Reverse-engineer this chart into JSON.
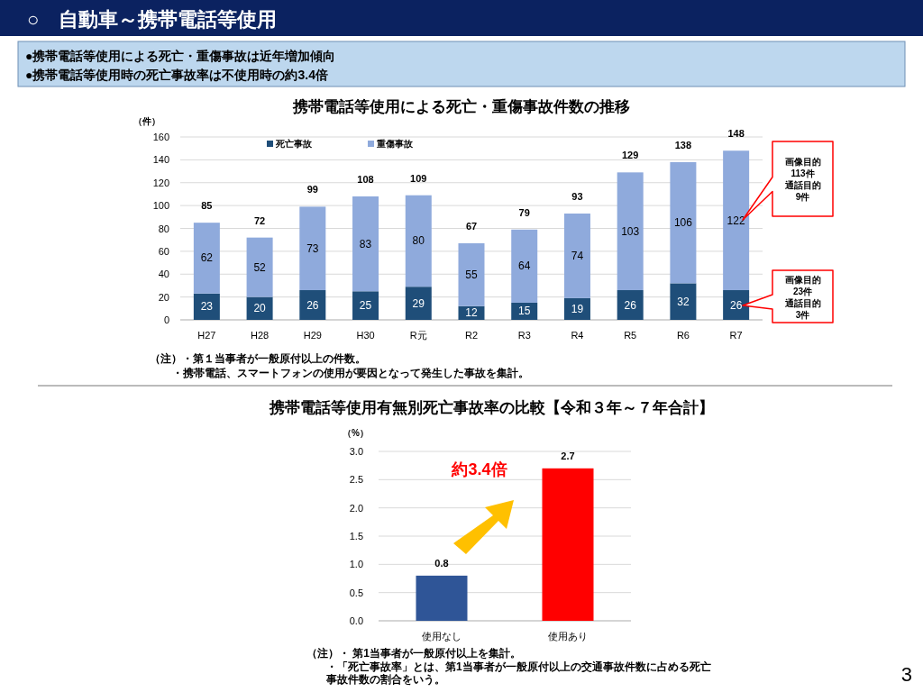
{
  "chart_data": [
    {
      "type": "bar",
      "title": "携帯電話等使用による死亡・重傷事故件数の推移",
      "ylabel": "（件）",
      "categories": [
        "H27",
        "H28",
        "H29",
        "H30",
        "R元",
        "R2",
        "R3",
        "R4",
        "R5",
        "R6",
        "R7"
      ],
      "stacked": true,
      "series": [
        {
          "name": "死亡事故",
          "color": "#1f4e79",
          "values": [
            23,
            20,
            26,
            25,
            29,
            12,
            15,
            19,
            26,
            32,
            26
          ]
        },
        {
          "name": "重傷事故",
          "color": "#8faadc",
          "values": [
            62,
            52,
            73,
            83,
            80,
            55,
            64,
            74,
            103,
            106,
            122
          ]
        }
      ],
      "totals": [
        "85",
        "72",
        "99",
        "108",
        "109",
        "67",
        "79",
        "93",
        "129",
        "138",
        "148"
      ],
      "data_labels": true,
      "ylim": [
        0,
        160
      ],
      "yticks": [
        0,
        20,
        40,
        60,
        80,
        100,
        120,
        140,
        160
      ],
      "grid": "y",
      "legend": "top",
      "annotations": [
        "○　自動車～携帯電話等使用",
        "●携帯電話等使用による死亡・重傷事故は近年増加傾向",
        "●携帯電話等使用時の死亡事故率は不使用時の約3.4倍",
        "画像目的113件通話目的9件",
        "画像目的23件通話目的3件",
        "（注）・第１当事者が一般原付以上の件数。",
        "・携帯電話、スマートフォンの使用が要因となって発生した事故を集計。"
      ]
    },
    {
      "type": "bar",
      "title": "携帯電話等使用有無別死亡事故率の比較【令和３年～７年合計】",
      "ylabel": "（%）",
      "categories": [
        "使用なし",
        "使用あり"
      ],
      "values": [
        0.8,
        2.7
      ],
      "colors": [
        "#2f5597",
        "#ff0000"
      ],
      "data_labels": true,
      "ylim": [
        0,
        3
      ],
      "yticks": [
        {
          "value": 0,
          "label": "0.0"
        },
        {
          "value": 0.5,
          "label": "0.5"
        },
        {
          "value": 1,
          "label": "1.0"
        },
        {
          "value": 1.5,
          "label": "1.5"
        },
        {
          "value": 2,
          "label": "2.0"
        },
        {
          "value": 2.5,
          "label": "2.5"
        },
        {
          "value": 3,
          "label": "3.0"
        }
      ],
      "grid": "y",
      "annotations": [
        "約3.4倍",
        "（注）・ 第1当事者が一般原付以上を集計。",
        "・「死亡事故率」とは、第1当事者が一般原付以上の交通事故件数に占める死亡事故件数の割合をいう。",
        "3"
      ]
    }
  ]
}
